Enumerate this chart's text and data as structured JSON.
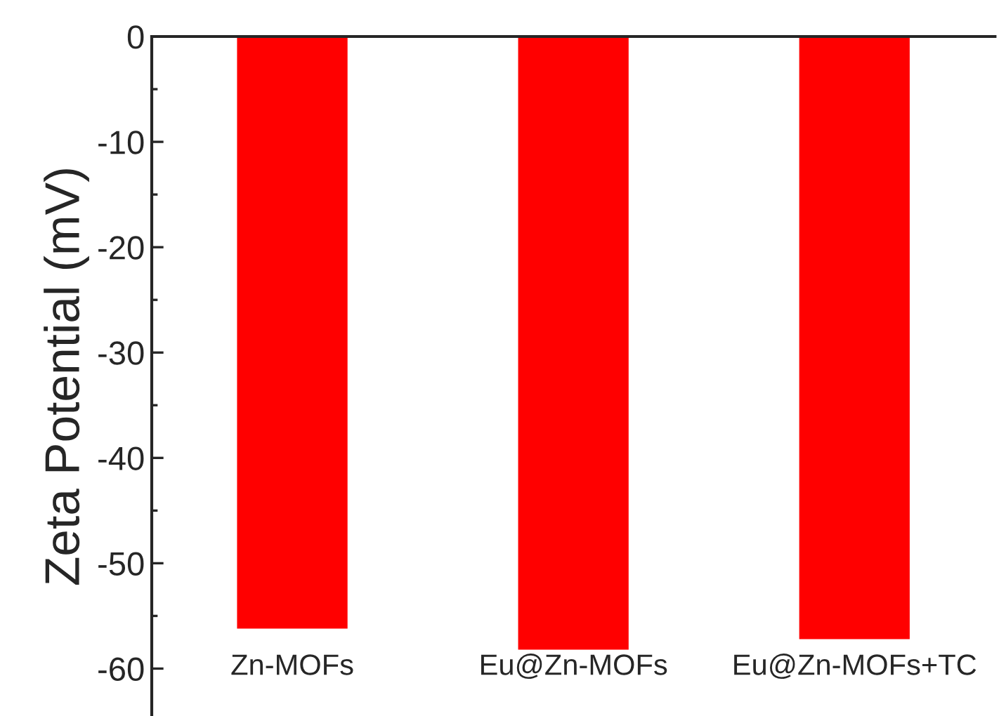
{
  "chart_data": {
    "type": "bar",
    "ylabel": "Zeta Potential (mV)",
    "categories": [
      "Zn-MOFs",
      "Eu@Zn-MOFs",
      "Eu@Zn-MOFs+TC"
    ],
    "values": [
      -56.3,
      -58.3,
      -57.3
    ],
    "color": "#ff0000",
    "ylim": [
      -64.5,
      0
    ],
    "yticks": [
      -60,
      -50,
      -40,
      -30,
      -20,
      -10,
      0
    ],
    "grid": false
  }
}
